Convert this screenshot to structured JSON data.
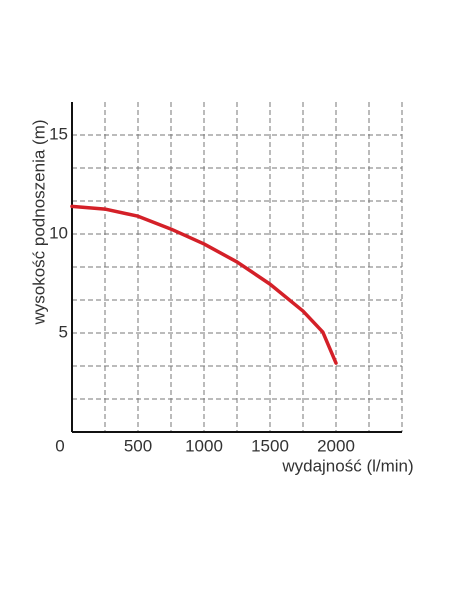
{
  "chart_data": {
    "type": "line",
    "x_label": "wydajność (l/min)",
    "y_label": "wysokość podnoszenia (m)",
    "x": [
      0,
      250,
      500,
      750,
      1000,
      1250,
      1500,
      1750,
      1900,
      2000
    ],
    "series": [
      {
        "color": "#d42028",
        "values": [
          11.4,
          11.26,
          10.9,
          10.25,
          9.5,
          8.59,
          7.47,
          6.11,
          5.05,
          3.48
        ]
      }
    ],
    "xlim": [
      0,
      2500
    ],
    "ylim": [
      0,
      16.67
    ],
    "xticks": [
      0,
      500,
      1000,
      1500,
      2000
    ],
    "yticks": [
      5,
      10,
      15
    ],
    "xgrid": [
      250,
      500,
      750,
      1000,
      1250,
      1500,
      1750,
      2000,
      2250,
      2500
    ],
    "ygrid": [
      1.667,
      3.333,
      5,
      6.667,
      8.333,
      10,
      11.667,
      13.333,
      15
    ],
    "grid": true
  }
}
